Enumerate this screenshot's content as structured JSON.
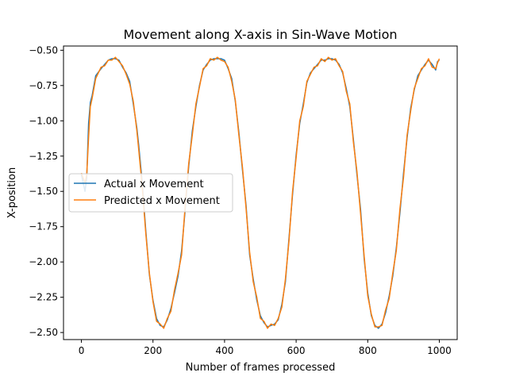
{
  "chart_data": {
    "type": "line",
    "title": "Movement along X-axis in Sin-Wave Motion",
    "xlabel": "Number of frames processed",
    "ylabel": "X-position",
    "xlim": [
      -50,
      1050
    ],
    "ylim": [
      -2.55,
      -0.47
    ],
    "xticks": [
      0,
      200,
      400,
      600,
      800,
      1000
    ],
    "yticks": [
      -2.5,
      -2.25,
      -2.0,
      -1.75,
      -1.5,
      -1.25,
      -1.0,
      -0.75,
      -0.5
    ],
    "ytick_labels": [
      "−2.50",
      "−2.25",
      "−2.00",
      "−1.75",
      "−1.50",
      "−1.25",
      "−1.00",
      "−0.75",
      "−0.50"
    ],
    "grid": false,
    "legend_position": "center-left",
    "series": [
      {
        "name": "Actual x Movement",
        "color": "#1f77b4",
        "x": [
          0,
          10,
          15,
          20,
          25,
          30,
          40,
          55,
          65,
          75,
          85,
          95,
          105,
          115,
          125,
          135,
          145,
          155,
          160,
          170,
          180,
          190,
          200,
          210,
          220,
          230,
          240,
          250,
          260,
          270,
          280,
          290,
          300,
          310,
          320,
          330,
          340,
          350,
          360,
          370,
          380,
          390,
          400,
          410,
          420,
          430,
          440,
          450,
          460,
          470,
          480,
          490,
          500,
          510,
          520,
          530,
          540,
          550,
          560,
          570,
          580,
          590,
          600,
          610,
          620,
          630,
          640,
          650,
          660,
          670,
          680,
          690,
          700,
          710,
          720,
          730,
          740,
          750,
          760,
          770,
          780,
          790,
          800,
          810,
          820,
          830,
          840,
          850,
          860,
          870,
          880,
          890,
          900,
          910,
          920,
          930,
          940,
          950,
          960,
          970,
          980,
          990,
          995,
          1000
        ],
        "values": [
          -1.38,
          -1.5,
          -1.4,
          -1.02,
          -0.87,
          -0.82,
          -0.68,
          -0.63,
          -0.6,
          -0.57,
          -0.56,
          -0.56,
          -0.57,
          -0.62,
          -0.66,
          -0.72,
          -0.88,
          -1.05,
          -1.17,
          -1.44,
          -1.78,
          -2.09,
          -2.27,
          -2.4,
          -2.45,
          -2.46,
          -2.41,
          -2.33,
          -2.22,
          -2.1,
          -1.92,
          -1.63,
          -1.32,
          -1.07,
          -0.9,
          -0.75,
          -0.64,
          -0.6,
          -0.57,
          -0.56,
          -0.56,
          -0.56,
          -0.57,
          -0.63,
          -0.7,
          -0.86,
          -1.08,
          -1.35,
          -1.6,
          -1.95,
          -2.12,
          -2.27,
          -2.38,
          -2.43,
          -2.46,
          -2.45,
          -2.44,
          -2.41,
          -2.3,
          -2.14,
          -1.83,
          -1.52,
          -1.24,
          -1.02,
          -0.88,
          -0.73,
          -0.66,
          -0.63,
          -0.6,
          -0.57,
          -0.57,
          -0.56,
          -0.56,
          -0.57,
          -0.6,
          -0.66,
          -0.77,
          -0.9,
          -1.13,
          -1.38,
          -1.63,
          -1.98,
          -2.22,
          -2.38,
          -2.45,
          -2.47,
          -2.44,
          -2.36,
          -2.24,
          -2.1,
          -1.9,
          -1.65,
          -1.37,
          -1.12,
          -0.91,
          -0.78,
          -0.68,
          -0.64,
          -0.6,
          -0.57,
          -0.6,
          -0.64,
          -0.58,
          -0.57
        ]
      },
      {
        "name": "Predicted x Movement",
        "color": "#ff7f0e",
        "x": [
          0,
          10,
          15,
          20,
          25,
          30,
          40,
          55,
          65,
          75,
          85,
          95,
          105,
          115,
          125,
          135,
          145,
          155,
          160,
          170,
          180,
          190,
          200,
          210,
          220,
          230,
          240,
          250,
          260,
          270,
          280,
          290,
          300,
          310,
          320,
          330,
          340,
          350,
          360,
          370,
          380,
          390,
          400,
          410,
          420,
          430,
          440,
          450,
          460,
          470,
          480,
          490,
          500,
          510,
          520,
          530,
          540,
          550,
          560,
          570,
          580,
          590,
          600,
          610,
          620,
          630,
          640,
          650,
          660,
          670,
          680,
          690,
          700,
          710,
          720,
          730,
          740,
          750,
          760,
          770,
          780,
          790,
          800,
          810,
          820,
          830,
          840,
          850,
          860,
          870,
          880,
          890,
          900,
          910,
          920,
          930,
          940,
          950,
          960,
          970,
          980,
          990,
          995,
          1000
        ],
        "values": [
          -1.37,
          -1.44,
          -1.38,
          -1.12,
          -0.9,
          -0.84,
          -0.7,
          -0.62,
          -0.61,
          -0.57,
          -0.57,
          -0.55,
          -0.58,
          -0.61,
          -0.67,
          -0.74,
          -0.86,
          -1.07,
          -1.2,
          -1.47,
          -1.8,
          -2.08,
          -2.28,
          -2.42,
          -2.44,
          -2.47,
          -2.4,
          -2.35,
          -2.2,
          -2.08,
          -1.95,
          -1.6,
          -1.3,
          -1.1,
          -0.88,
          -0.76,
          -0.63,
          -0.61,
          -0.56,
          -0.57,
          -0.55,
          -0.57,
          -0.58,
          -0.62,
          -0.72,
          -0.85,
          -1.1,
          -1.33,
          -1.62,
          -1.93,
          -2.14,
          -2.25,
          -2.4,
          -2.42,
          -2.47,
          -2.44,
          -2.45,
          -2.4,
          -2.32,
          -2.12,
          -1.85,
          -1.5,
          -1.26,
          -1.0,
          -0.9,
          -0.72,
          -0.67,
          -0.62,
          -0.61,
          -0.56,
          -0.58,
          -0.55,
          -0.57,
          -0.56,
          -0.61,
          -0.65,
          -0.79,
          -0.88,
          -1.15,
          -1.36,
          -1.66,
          -1.96,
          -2.24,
          -2.37,
          -2.46,
          -2.46,
          -2.45,
          -2.34,
          -2.26,
          -2.08,
          -1.92,
          -1.62,
          -1.4,
          -1.1,
          -0.93,
          -0.77,
          -0.7,
          -0.63,
          -0.61,
          -0.56,
          -0.62,
          -0.63,
          -0.59,
          -0.56
        ]
      }
    ]
  }
}
